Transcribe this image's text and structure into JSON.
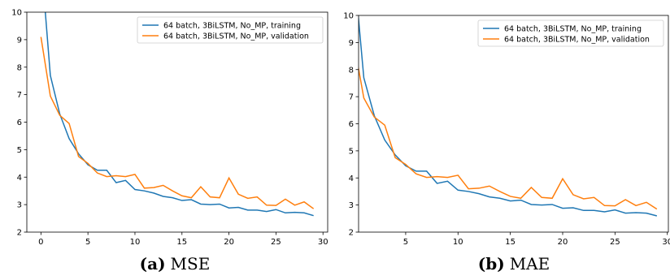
{
  "chart_data": [
    {
      "type": "line",
      "caption_label": "(a)",
      "caption": "MSE",
      "x": [
        0,
        1,
        2,
        3,
        4,
        5,
        6,
        7,
        8,
        9,
        10,
        11,
        12,
        13,
        14,
        15,
        16,
        17,
        18,
        19,
        20,
        21,
        22,
        23,
        24,
        25,
        26,
        27,
        28,
        29
      ],
      "series": [
        {
          "name": "64 batch, 3BiLSTM, No_MP, training",
          "color": "#1f77b4",
          "values": [
            12,
            7.7,
            6.3,
            5.4,
            4.85,
            4.45,
            4.25,
            4.25,
            3.8,
            3.88,
            3.55,
            3.5,
            3.42,
            3.3,
            3.25,
            3.15,
            3.18,
            3.02,
            3.0,
            3.02,
            2.88,
            2.9,
            2.8,
            2.8,
            2.75,
            2.82,
            2.7,
            2.72,
            2.7,
            2.6
          ]
        },
        {
          "name": "64 batch, 3BiLSTM, No_MP, validation",
          "color": "#ff7f0e",
          "values": [
            9.1,
            6.95,
            6.25,
            5.95,
            4.75,
            4.5,
            4.15,
            4.02,
            4.05,
            4.02,
            4.1,
            3.6,
            3.62,
            3.7,
            3.5,
            3.32,
            3.25,
            3.65,
            3.28,
            3.25,
            3.97,
            3.38,
            3.23,
            3.28,
            2.98,
            2.97,
            3.2,
            2.98,
            3.1,
            2.85
          ]
        }
      ],
      "xlim": [
        -1.5,
        30.5
      ],
      "xticks": [
        0,
        5,
        10,
        15,
        20,
        25,
        30
      ],
      "ylim": [
        2,
        10
      ],
      "yticks": [
        2,
        3,
        4,
        5,
        6,
        7,
        8,
        9,
        10
      ],
      "legend": "upper right"
    },
    {
      "type": "line",
      "caption_label": "(b)",
      "caption": "MAE",
      "x": [
        0,
        1,
        2,
        3,
        4,
        5,
        6,
        7,
        8,
        9,
        10,
        11,
        12,
        13,
        14,
        15,
        16,
        17,
        18,
        19,
        20,
        21,
        22,
        23,
        24,
        25,
        26,
        27,
        28,
        29
      ],
      "series": [
        {
          "name": "64 batch, 3BiLSTM, No_MP, training",
          "color": "#1f77b4",
          "values": [
            12,
            7.7,
            6.3,
            5.4,
            4.85,
            4.45,
            4.25,
            4.25,
            3.8,
            3.88,
            3.55,
            3.5,
            3.42,
            3.3,
            3.25,
            3.15,
            3.18,
            3.02,
            3.0,
            3.02,
            2.88,
            2.9,
            2.8,
            2.8,
            2.75,
            2.82,
            2.7,
            2.72,
            2.7,
            2.6
          ]
        },
        {
          "name": "64 batch, 3BiLSTM, No_MP, validation",
          "color": "#ff7f0e",
          "values": [
            9.1,
            6.95,
            6.25,
            5.95,
            4.75,
            4.5,
            4.15,
            4.02,
            4.05,
            4.02,
            4.1,
            3.6,
            3.62,
            3.7,
            3.5,
            3.32,
            3.25,
            3.65,
            3.28,
            3.25,
            3.97,
            3.38,
            3.23,
            3.28,
            2.98,
            2.97,
            3.2,
            2.98,
            3.1,
            2.85
          ]
        }
      ],
      "xlim": [
        0.5,
        30.1
      ],
      "xticks": [
        5,
        10,
        15,
        20,
        25,
        30
      ],
      "ylim": [
        2,
        10
      ],
      "yticks": [
        2,
        3,
        4,
        5,
        6,
        7,
        8,
        9,
        10
      ],
      "legend": "upper right"
    }
  ]
}
